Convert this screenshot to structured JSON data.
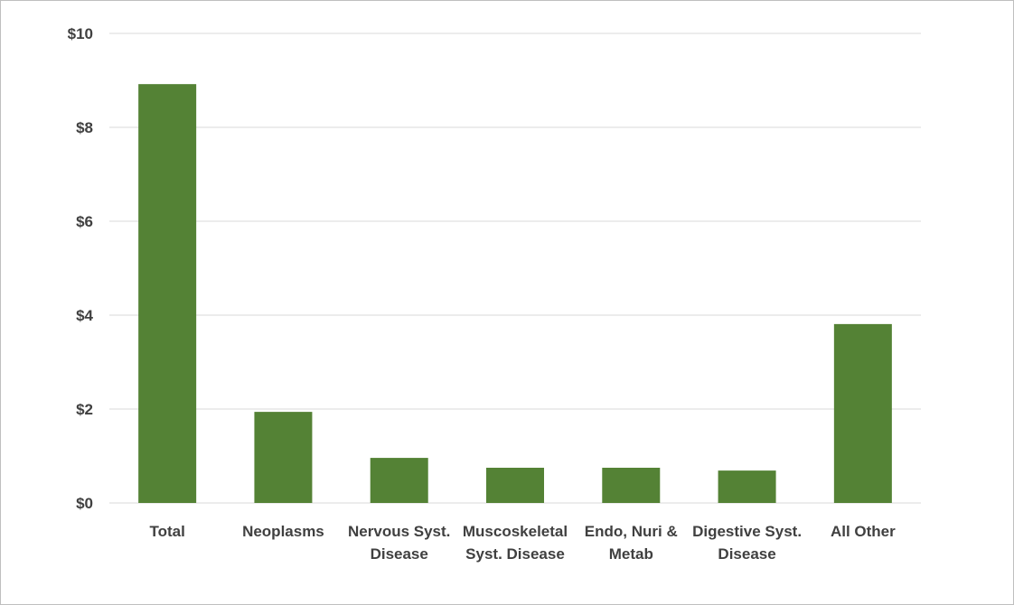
{
  "chart_data": {
    "type": "bar",
    "title": "",
    "xlabel": "",
    "ylabel": "",
    "categories": [
      [
        "Total"
      ],
      [
        "Neoplasms"
      ],
      [
        "Nervous Syst.",
        "Disease"
      ],
      [
        "Muscoskeletal",
        "Syst. Disease"
      ],
      [
        "Endo, Nuri &",
        "Metab"
      ],
      [
        "Digestive Syst.",
        "Disease"
      ],
      [
        "All Other"
      ]
    ],
    "values": [
      8.92,
      1.94,
      0.96,
      0.75,
      0.75,
      0.69,
      3.81
    ],
    "ylim": [
      0,
      10
    ],
    "yticks": [
      0,
      2,
      4,
      6,
      8,
      10
    ],
    "ytick_labels": [
      "$0",
      "$2",
      "$4",
      "$6",
      "$8",
      "$10"
    ],
    "grid": true,
    "legend": "none",
    "colors": {
      "bar": "#548235",
      "grid": "#d9d9d9",
      "text": "#404040"
    }
  }
}
